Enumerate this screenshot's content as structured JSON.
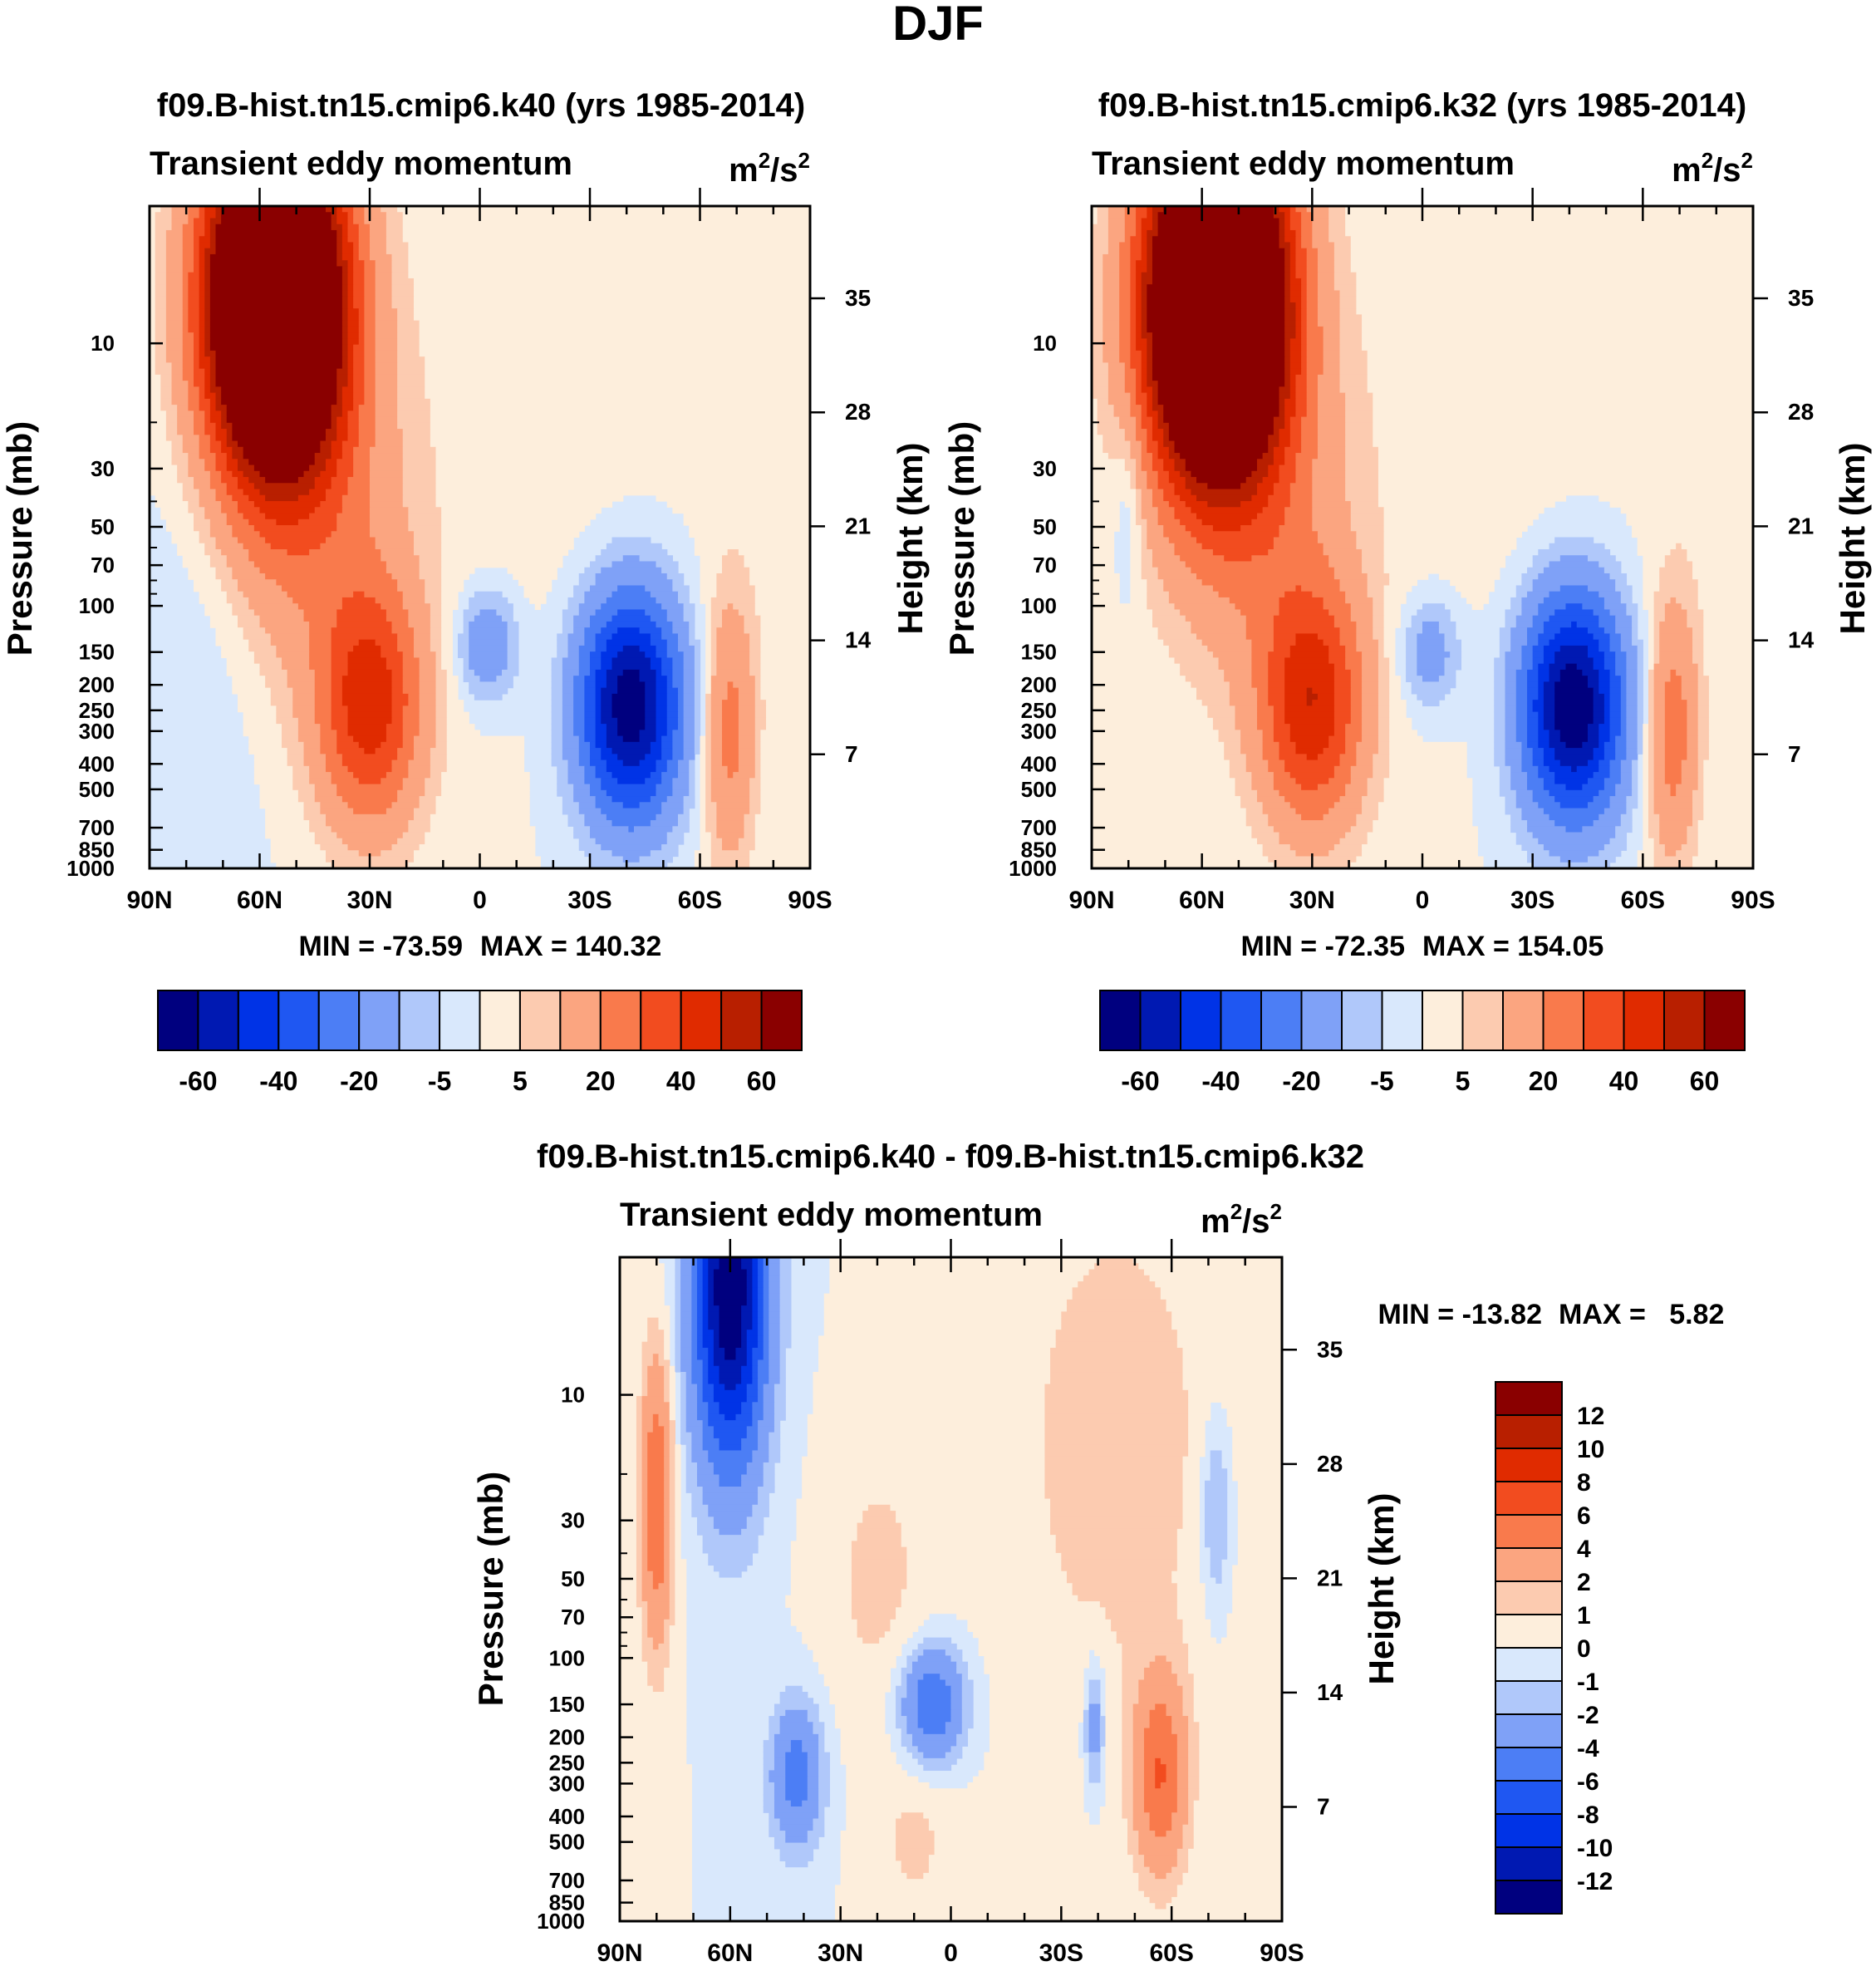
{
  "figure": {
    "title": "DJF"
  },
  "palettes": {
    "main": [
      "#00007f",
      "#0019b2",
      "#0033e6",
      "#1f57f2",
      "#4c7ef5",
      "#7fa1f7",
      "#b0c8fa",
      "#d9e8fc",
      "#fdeedc",
      "#fccbb0",
      "#fba580",
      "#f97a4c",
      "#f24c1f",
      "#e02b00",
      "#b81f00",
      "#8a0000"
    ],
    "diff": [
      "#00007f",
      "#0019b2",
      "#0033e6",
      "#1f57f2",
      "#4c7ef5",
      "#7fa1f7",
      "#b0c8fa",
      "#d9e8fc",
      "#fdeedc",
      "#fccbb0",
      "#fba580",
      "#f97a4c",
      "#f24c1f",
      "#e02b00",
      "#b81f00",
      "#8a0000"
    ]
  },
  "chart_data": [
    {
      "type": "heatmap",
      "id": "k40",
      "title": "f09.B-hist.tn15.cmip6.k40 (yrs 1985-2014)",
      "subtitle": "Transient eddy momentum",
      "units_base": "m",
      "units_sup1": "2",
      "units_mid": "/s",
      "units_sup2": "2",
      "ylabel": "Pressure (mb)",
      "ylabel_right": "Height (km)",
      "x_ticks": [
        "90N",
        "60N",
        "30N",
        "0",
        "30S",
        "60S",
        "90S"
      ],
      "y_ticks": [
        "10",
        "30",
        "50",
        "70",
        "100",
        "150",
        "200",
        "250",
        "300",
        "400",
        "500",
        "700",
        "850",
        "1000"
      ],
      "y_right_ticks": [
        "35",
        "28",
        "21",
        "14",
        "7"
      ],
      "xlim": [
        90,
        -90
      ],
      "ylim_mb": [
        1000,
        3
      ],
      "min_label": "MIN = -73.59",
      "max_label": "MAX = 140.32",
      "min": -73.59,
      "max": 140.32,
      "levels": [
        -70,
        -60,
        -50,
        -40,
        -30,
        -20,
        -10,
        -5,
        0,
        5,
        10,
        20,
        30,
        40,
        50,
        60,
        70
      ],
      "colorbar_labels": [
        "-60",
        "-40",
        "-20",
        "-5",
        "5",
        "20",
        "40",
        "60"
      ],
      "features": [
        {
          "lat": 56,
          "p": 7,
          "amp": 150,
          "wlat": 13,
          "wz": 1.05
        },
        {
          "lat": 30,
          "p": 240,
          "amp": 44,
          "wlat": 10,
          "wz": 0.75
        },
        {
          "lat": 45,
          "p": 40,
          "amp": 16,
          "wlat": 18,
          "wz": 1.2
        },
        {
          "lat": -41,
          "p": 240,
          "amp": -68,
          "wlat": 10,
          "wz": 0.7
        },
        {
          "lat": -2,
          "p": 140,
          "amp": -19,
          "wlat": 6,
          "wz": 0.35
        },
        {
          "lat": -68,
          "p": 300,
          "amp": 24,
          "wlat": 5,
          "wz": 0.8
        },
        {
          "lat": 75,
          "p": 80,
          "amp": -5,
          "wlat": 12,
          "wz": 2.0
        },
        {
          "lat": -20,
          "p": 20,
          "amp": 3,
          "wlat": 30,
          "wz": 2.0
        },
        {
          "lat": -80,
          "p": 20,
          "amp": 3,
          "wlat": 10,
          "wz": 1.5
        }
      ]
    },
    {
      "type": "heatmap",
      "id": "k32",
      "title": "f09.B-hist.tn15.cmip6.k32 (yrs 1985-2014)",
      "subtitle": "Transient eddy momentum",
      "units_base": "m",
      "units_sup1": "2",
      "units_mid": "/s",
      "units_sup2": "2",
      "ylabel": "Pressure (mb)",
      "ylabel_right": "Height (km)",
      "x_ticks": [
        "90N",
        "60N",
        "30N",
        "0",
        "30S",
        "60S",
        "90S"
      ],
      "y_ticks": [
        "10",
        "30",
        "50",
        "70",
        "100",
        "150",
        "200",
        "250",
        "300",
        "400",
        "500",
        "700",
        "850",
        "1000"
      ],
      "y_right_ticks": [
        "35",
        "28",
        "21",
        "14",
        "7"
      ],
      "xlim": [
        90,
        -90
      ],
      "ylim_mb": [
        1000,
        3
      ],
      "min_label": "MIN = -72.35",
      "max_label": "MAX = 154.05",
      "min": -72.35,
      "max": 154.05,
      "levels": [
        -70,
        -60,
        -50,
        -40,
        -30,
        -20,
        -10,
        -5,
        0,
        5,
        10,
        20,
        30,
        40,
        50,
        60,
        70
      ],
      "colorbar_labels": [
        "-60",
        "-40",
        "-20",
        "-5",
        "5",
        "20",
        "40",
        "60"
      ],
      "features": [
        {
          "lat": 56,
          "p": 7,
          "amp": 160,
          "wlat": 13,
          "wz": 1.05
        },
        {
          "lat": 30,
          "p": 240,
          "amp": 46,
          "wlat": 10,
          "wz": 0.75
        },
        {
          "lat": 45,
          "p": 40,
          "amp": 16,
          "wlat": 18,
          "wz": 1.2
        },
        {
          "lat": -41,
          "p": 240,
          "amp": -70,
          "wlat": 10,
          "wz": 0.7
        },
        {
          "lat": -2,
          "p": 150,
          "amp": -16,
          "wlat": 6,
          "wz": 0.35
        },
        {
          "lat": -68,
          "p": 300,
          "amp": 26,
          "wlat": 5,
          "wz": 0.8
        },
        {
          "lat": 80,
          "p": 40,
          "amp": -9,
          "wlat": 3,
          "wz": 0.6
        },
        {
          "lat": -20,
          "p": 20,
          "amp": 3,
          "wlat": 30,
          "wz": 2.0
        },
        {
          "lat": -80,
          "p": 20,
          "amp": 3,
          "wlat": 10,
          "wz": 1.5
        }
      ]
    },
    {
      "type": "heatmap",
      "id": "diff",
      "title": "f09.B-hist.tn15.cmip6.k40 - f09.B-hist.tn15.cmip6.k32",
      "subtitle": "Transient eddy momentum",
      "units_base": "m",
      "units_sup1": "2",
      "units_mid": "/s",
      "units_sup2": "2",
      "ylabel": "Pressure (mb)",
      "ylabel_right": "Height (km)",
      "x_ticks": [
        "90N",
        "60N",
        "30N",
        "0",
        "30S",
        "60S",
        "90S"
      ],
      "y_ticks": [
        "10",
        "30",
        "50",
        "70",
        "100",
        "150",
        "200",
        "250",
        "300",
        "400",
        "500",
        "700",
        "850",
        "1000"
      ],
      "y_right_ticks": [
        "35",
        "28",
        "21",
        "14",
        "7"
      ],
      "xlim": [
        90,
        -90
      ],
      "ylim_mb": [
        1000,
        3
      ],
      "min_label": "MIN = -13.82",
      "max_label": "MAX =   5.82",
      "min": -13.82,
      "max": 5.82,
      "levels": [
        -14,
        -12,
        -10,
        -8,
        -6,
        -4,
        -2,
        -1,
        0,
        1,
        2,
        4,
        6,
        8,
        10,
        12,
        14
      ],
      "colorbar_labels": [
        "12",
        "10",
        "8",
        "6",
        "4",
        "2",
        "1",
        "0",
        "-1",
        "-2",
        "-4",
        "-6",
        "-8",
        "-10",
        "-12"
      ],
      "features": [
        {
          "lat": 60,
          "p": 4,
          "amp": -14,
          "wlat": 7,
          "wz": 1.1
        },
        {
          "lat": 80,
          "p": 25,
          "amp": 6,
          "wlat": 3,
          "wz": 0.9
        },
        {
          "lat": 42,
          "p": 280,
          "amp": -5,
          "wlat": 5,
          "wz": 0.45
        },
        {
          "lat": 5,
          "p": 150,
          "amp": -6,
          "wlat": 6,
          "wz": 0.35
        },
        {
          "lat": -39,
          "p": 180,
          "amp": -3.2,
          "wlat": 2,
          "wz": 0.4
        },
        {
          "lat": -57,
          "p": 280,
          "amp": 5.8,
          "wlat": 5,
          "wz": 0.6
        },
        {
          "lat": -72,
          "p": 28,
          "amp": -2.6,
          "wlat": 3,
          "wz": 0.6
        },
        {
          "lat": 20,
          "p": 50,
          "amp": 1.3,
          "wlat": 10,
          "wz": 0.9
        },
        {
          "lat": -45,
          "p": 15,
          "amp": 1.5,
          "wlat": 22,
          "wz": 1.8
        },
        {
          "lat": 10,
          "p": 500,
          "amp": 1.2,
          "wlat": 8,
          "wz": 0.5
        }
      ]
    }
  ]
}
